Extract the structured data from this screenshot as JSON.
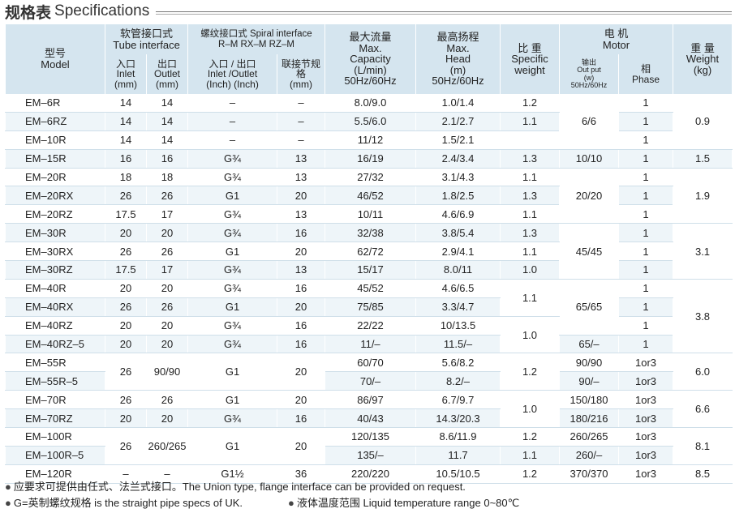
{
  "header": {
    "title_cn": "规格表",
    "title_en": "Specifications"
  },
  "table": {
    "columns": {
      "model": "型号\nModel",
      "tube": "软管接口式\nTube interface",
      "tube_inlet": "入口\nInlet\n(mm)",
      "tube_outlet": "出口\nOutlet\n(mm)",
      "spiral": "螺纹接口式 Spiral interface\nR–M  RX–M  RZ–M",
      "spiral_io": "入口 / 出口\nInlet /Outlet\n(Inch)  (Inch)",
      "spiral_joint": "联接节规格\n(mm)",
      "capacity": "最大流量\nMax.\nCapacity\n(L/min)\n50Hz/60Hz",
      "head": "最高扬程\nMax.\nHead\n(m)\n50Hz/60Hz",
      "weight_spec": "比  重\nSpecific\nweight",
      "motor": "电    机\nMotor",
      "output": "输出\nOut put\n(w)\n50Hz/60Hz",
      "phase": "相\nPhase",
      "weight": "重  量\nWeight\n(kg)"
    },
    "rows": [
      {
        "model": "EM–6R",
        "inlet": "14",
        "outlet": "14",
        "spiral_io": "–",
        "joint": "–",
        "capacity": "8.0/9.0",
        "head": "1.0/1.4",
        "phase": "1"
      },
      {
        "model": "EM–6RZ",
        "inlet": "14",
        "outlet": "14",
        "spiral_io": "–",
        "joint": "–",
        "capacity": "5.5/6.0",
        "head": "2.1/2.7",
        "phase": "1"
      },
      {
        "model": "EM–10R",
        "inlet": "14",
        "outlet": "14",
        "spiral_io": "–",
        "joint": "–",
        "capacity": "11/12",
        "head": "1.5/2.1",
        "phase": "1"
      },
      {
        "model": "EM–15R",
        "inlet": "16",
        "outlet": "16",
        "spiral_io": "G¾",
        "joint": "13",
        "capacity": "16/19",
        "head": "2.4/3.4",
        "phase": "1"
      },
      {
        "model": "EM–20R",
        "inlet": "18",
        "outlet": "18",
        "spiral_io": "G¾",
        "joint": "13",
        "capacity": "27/32",
        "head": "3.1/4.3",
        "phase": "1"
      },
      {
        "model": "EM–20RX",
        "inlet": "26",
        "outlet": "26",
        "spiral_io": "G1",
        "joint": "20",
        "capacity": "46/52",
        "head": "1.8/2.5",
        "phase": "1"
      },
      {
        "model": "EM–20RZ",
        "inlet": "17.5",
        "outlet": "17",
        "spiral_io": "G¾",
        "joint": "13",
        "capacity": "10/11",
        "head": "4.6/6.9",
        "phase": "1"
      },
      {
        "model": "EM–30R",
        "inlet": "20",
        "outlet": "20",
        "spiral_io": "G¾",
        "joint": "16",
        "capacity": "32/38",
        "head": "3.8/5.4",
        "phase": "1"
      },
      {
        "model": "EM–30RX",
        "inlet": "26",
        "outlet": "26",
        "spiral_io": "G1",
        "joint": "20",
        "capacity": "62/72",
        "head": "2.9/4.1",
        "phase": "1"
      },
      {
        "model": "EM–30RZ",
        "inlet": "17.5",
        "outlet": "17",
        "spiral_io": "G¾",
        "joint": "13",
        "capacity": "15/17",
        "head": "8.0/11",
        "phase": "1"
      },
      {
        "model": "EM–40R",
        "inlet": "20",
        "outlet": "20",
        "spiral_io": "G¾",
        "joint": "16",
        "capacity": "45/52",
        "head": "4.6/6.5",
        "phase": "1"
      },
      {
        "model": "EM–40RX",
        "inlet": "26",
        "outlet": "26",
        "spiral_io": "G1",
        "joint": "20",
        "capacity": "75/85",
        "head": "3.3/4.7",
        "phase": "1"
      },
      {
        "model": "EM–40RZ",
        "inlet": "20",
        "outlet": "20",
        "spiral_io": "G¾",
        "joint": "16",
        "capacity": "22/22",
        "head": "10/13.5",
        "phase": "1"
      },
      {
        "model": "EM–40RZ–5",
        "inlet": "20",
        "outlet": "20",
        "spiral_io": "G¾",
        "joint": "16",
        "capacity": "11/–",
        "head": "11.5/–",
        "phase": "1"
      },
      {
        "model": "EM–55R",
        "capacity": "60/70",
        "head": "5.6/8.2",
        "phase": "1or3"
      },
      {
        "model": "EM–55R–5",
        "capacity": "70/–",
        "head": "8.2/–",
        "phase": "1or3"
      },
      {
        "model": "EM–70R",
        "inlet": "26",
        "outlet": "26",
        "spiral_io": "G1",
        "joint": "20",
        "capacity": "86/97",
        "head": "6.7/9.7",
        "phase": "1or3"
      },
      {
        "model": "EM–70RZ",
        "inlet": "20",
        "outlet": "20",
        "spiral_io": "G¾",
        "joint": "16",
        "capacity": "40/43",
        "head": "14.3/20.3",
        "phase": "1or3"
      },
      {
        "model": "EM–100R",
        "capacity": "120/135",
        "head": "8.6/11.9",
        "phase": "1or3"
      },
      {
        "model": "EM–100R–5",
        "capacity": "135/–",
        "head": "11.7",
        "phase": "1or3"
      },
      {
        "model": "EM–120R",
        "inlet": "–",
        "outlet": "–",
        "spiral_io": "G1½",
        "joint": "36",
        "capacity": "220/220",
        "head": "10.5/10.5",
        "phase": "1or3"
      }
    ],
    "merged": {
      "in_out_55": "26",
      "out_55": "90/90",
      "io_55": "G1",
      "joint_55": "20",
      "in_100": "26",
      "out_100": "260/265",
      "io_100": "G1",
      "joint_100": "20",
      "spec_6_10": "1.2",
      "spec_6rz": "1.1",
      "spec_15": "1.3",
      "spec_20": "1.1",
      "spec_20rx": "1.3",
      "spec_20rz": "1.1",
      "spec_30": "1.3",
      "spec_30rx": "1.1",
      "spec_30rz": "1.0",
      "spec_40": "1.1",
      "spec_40rz": "1.0",
      "spec_55": "1.2",
      "spec_70": "1.0",
      "spec_100": "1.2",
      "spec_100_5": "1.1",
      "spec_120": "1.2",
      "out_6": "6/6",
      "out_15": "10/10",
      "out_20": "20/20",
      "out_30": "45/45",
      "out_40": "65/65",
      "out_40rz5": "65/–",
      "out_55_5": "90/–",
      "out_70": "150/180",
      "out_70rz": "180/216",
      "out_100_5": "260/–",
      "out_120": "370/370",
      "w_6": "0.9",
      "w_15": "1.5",
      "w_20": "1.9",
      "w_30": "3.1",
      "w_40": "3.8",
      "w_55": "6.0",
      "w_70": "6.6",
      "w_100": "8.1",
      "w_120": "8.5"
    }
  },
  "notes": {
    "note1": "应要求可提供由任式、法兰式接口。The Union type, flange interface can be provided on request.",
    "note2": "G=英制螺纹规格 is the straight pipe specs of UK.",
    "note3": "液体温度范围 Liquid temperature range 0~80℃"
  }
}
